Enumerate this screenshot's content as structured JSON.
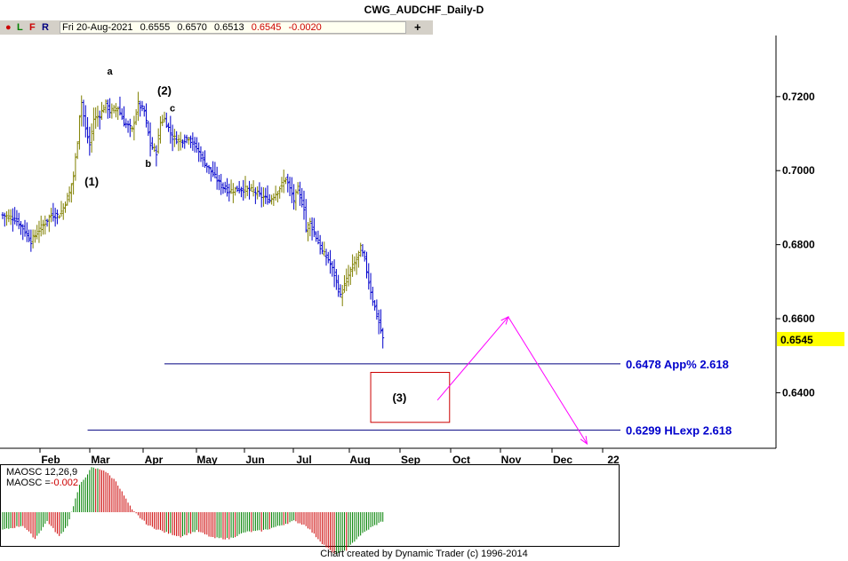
{
  "window": {
    "title": "CWG_AUDCHF_Daily-D"
  },
  "toolbar": {
    "buttons": [
      {
        "label": "●",
        "color": "#cc0000"
      },
      {
        "label": "L",
        "color": "#008000"
      },
      {
        "label": "F",
        "color": "#cc0000"
      },
      {
        "label": "R",
        "color": "#000080"
      }
    ],
    "quote": {
      "date": "Fri 20-Aug-2021",
      "open": "0.6555",
      "high": "0.6570",
      "low": "0.6513",
      "close": "0.6545",
      "change": "-0.0020"
    },
    "plus_label": "+"
  },
  "footer": {
    "credit": "Chart created by Dynamic Trader  (c) 1996-2014"
  },
  "chart_data": [
    {
      "type": "candlestick",
      "title": "CWG_AUDCHF_Daily-D",
      "ylim": [
        0.625,
        0.7365
      ],
      "yticks": [
        "0.7200",
        "0.7000",
        "0.6800",
        "0.6600",
        "0.6400"
      ],
      "ytick_values": [
        0.72,
        0.7,
        0.68,
        0.66,
        0.64
      ],
      "xticks": [
        "Feb",
        "Mar",
        "Apr",
        "May",
        "Jun",
        "Jul",
        "Aug",
        "Sep",
        "Oct",
        "Nov",
        "Dec",
        "22"
      ],
      "current_price": "0.6545",
      "current_price_color": "#ffff00",
      "up_color": "#808000",
      "down_color": "#0000cc",
      "anchors": [
        {
          "i": 0,
          "v": 0.688
        },
        {
          "i": 6,
          "v": 0.687
        },
        {
          "i": 10,
          "v": 0.6845
        },
        {
          "i": 14,
          "v": 0.681
        },
        {
          "i": 18,
          "v": 0.684
        },
        {
          "i": 24,
          "v": 0.688
        },
        {
          "i": 28,
          "v": 0.688
        },
        {
          "i": 30,
          "v": 0.69
        },
        {
          "i": 33,
          "v": 0.694
        },
        {
          "i": 35,
          "v": 0.6985
        },
        {
          "i": 37,
          "v": 0.708
        },
        {
          "i": 38,
          "v": 0.715
        },
        {
          "i": 39,
          "v": 0.7185
        },
        {
          "i": 41,
          "v": 0.711
        },
        {
          "i": 43,
          "v": 0.707
        },
        {
          "i": 45,
          "v": 0.714
        },
        {
          "i": 48,
          "v": 0.715
        },
        {
          "i": 51,
          "v": 0.718
        },
        {
          "i": 53,
          "v": 0.716
        },
        {
          "i": 57,
          "v": 0.717
        },
        {
          "i": 60,
          "v": 0.713
        },
        {
          "i": 64,
          "v": 0.711
        },
        {
          "i": 67,
          "v": 0.718
        },
        {
          "i": 70,
          "v": 0.716
        },
        {
          "i": 73,
          "v": 0.707
        },
        {
          "i": 76,
          "v": 0.705
        },
        {
          "i": 78,
          "v": 0.713
        },
        {
          "i": 80,
          "v": 0.714
        },
        {
          "i": 84,
          "v": 0.709
        },
        {
          "i": 88,
          "v": 0.708
        },
        {
          "i": 92,
          "v": 0.709
        },
        {
          "i": 96,
          "v": 0.706
        },
        {
          "i": 100,
          "v": 0.702
        },
        {
          "i": 104,
          "v": 0.699
        },
        {
          "i": 108,
          "v": 0.696
        },
        {
          "i": 112,
          "v": 0.6945
        },
        {
          "i": 116,
          "v": 0.695
        },
        {
          "i": 120,
          "v": 0.695
        },
        {
          "i": 124,
          "v": 0.6945
        },
        {
          "i": 128,
          "v": 0.693
        },
        {
          "i": 132,
          "v": 0.692
        },
        {
          "i": 136,
          "v": 0.6945
        },
        {
          "i": 140,
          "v": 0.698
        },
        {
          "i": 142,
          "v": 0.695
        },
        {
          "i": 144,
          "v": 0.692
        },
        {
          "i": 146,
          "v": 0.695
        },
        {
          "i": 147,
          "v": 0.693
        },
        {
          "i": 149,
          "v": 0.69
        },
        {
          "i": 150,
          "v": 0.684
        },
        {
          "i": 152,
          "v": 0.686
        },
        {
          "i": 155,
          "v": 0.682
        },
        {
          "i": 158,
          "v": 0.678
        },
        {
          "i": 161,
          "v": 0.676
        },
        {
          "i": 164,
          "v": 0.672
        },
        {
          "i": 167,
          "v": 0.666
        },
        {
          "i": 169,
          "v": 0.669
        },
        {
          "i": 172,
          "v": 0.673
        },
        {
          "i": 175,
          "v": 0.676
        },
        {
          "i": 177,
          "v": 0.679
        },
        {
          "i": 179,
          "v": 0.676
        },
        {
          "i": 181,
          "v": 0.67
        },
        {
          "i": 183,
          "v": 0.665
        },
        {
          "i": 186,
          "v": 0.659
        },
        {
          "i": 188,
          "v": 0.6545
        }
      ],
      "labels": [
        {
          "text": "a",
          "i": 53,
          "v": 0.726
        },
        {
          "text": "(1)",
          "i": 44,
          "v": 0.696
        },
        {
          "text": "(2)",
          "i": 80,
          "v": 0.7205
        },
        {
          "text": "c",
          "i": 84,
          "v": 0.716
        },
        {
          "text": "b",
          "i": 72,
          "v": 0.701
        }
      ],
      "hlines": [
        {
          "value": 0.6478,
          "label": "0.6478 App% 2.618",
          "from_i": 80
        },
        {
          "value": 0.6299,
          "label": "0.6299 HLexp 2.618",
          "from_i": 42
        }
      ],
      "target_box": {
        "label": "(3)",
        "i_from": 182,
        "i_to": 221,
        "v_top": 0.6455,
        "v_bottom": 0.632
      },
      "projection": [
        {
          "i": 215,
          "v": 0.638
        },
        {
          "i": 250,
          "v": 0.6605
        },
        {
          "i": 289,
          "v": 0.6262
        }
      ]
    },
    {
      "type": "bar",
      "title": "MAOSC 12,26,9",
      "readout_label": "MAOSC =",
      "readout_value": "-0.002",
      "anchors": [
        {
          "i": 0,
          "v": -0.4
        },
        {
          "i": 10,
          "v": -0.3
        },
        {
          "i": 16,
          "v": -0.6
        },
        {
          "i": 22,
          "v": -0.2
        },
        {
          "i": 28,
          "v": -0.55
        },
        {
          "i": 32,
          "v": -0.3
        },
        {
          "i": 38,
          "v": 0.6
        },
        {
          "i": 44,
          "v": 1.0
        },
        {
          "i": 50,
          "v": 0.95
        },
        {
          "i": 56,
          "v": 0.7
        },
        {
          "i": 64,
          "v": 0.05
        },
        {
          "i": 72,
          "v": -0.3
        },
        {
          "i": 80,
          "v": -0.45
        },
        {
          "i": 88,
          "v": -0.55
        },
        {
          "i": 96,
          "v": -0.42
        },
        {
          "i": 104,
          "v": -0.58
        },
        {
          "i": 112,
          "v": -0.6
        },
        {
          "i": 120,
          "v": -0.45
        },
        {
          "i": 128,
          "v": -0.42
        },
        {
          "i": 136,
          "v": -0.32
        },
        {
          "i": 144,
          "v": -0.2
        },
        {
          "i": 150,
          "v": -0.3
        },
        {
          "i": 158,
          "v": -0.7
        },
        {
          "i": 164,
          "v": -0.95
        },
        {
          "i": 170,
          "v": -0.85
        },
        {
          "i": 176,
          "v": -0.55
        },
        {
          "i": 182,
          "v": -0.35
        },
        {
          "i": 188,
          "v": -0.2
        }
      ],
      "pos_up": "#008000",
      "pos_down": "#cc0000",
      "neg_up": "#008000",
      "neg_down": "#cc0000"
    }
  ]
}
